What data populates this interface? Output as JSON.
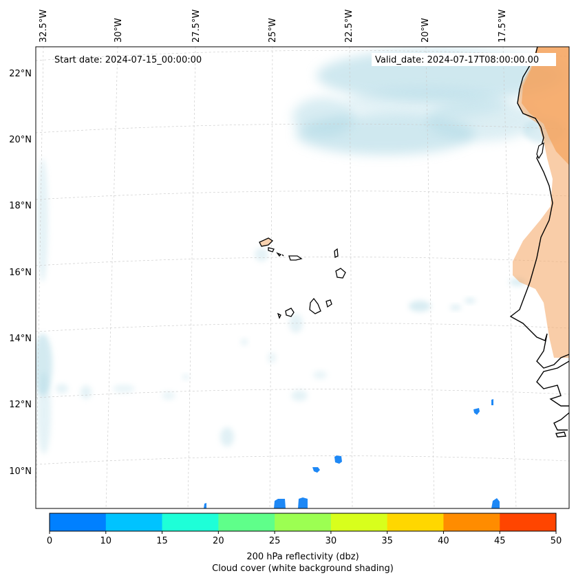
{
  "map": {
    "start_date_label": "Start date: 2024-07-15_00:00:00",
    "valid_date_label": "Valid_date: 2024-07-17T08:00:00.00",
    "lon_ticks": [
      "32.5°W",
      "30°W",
      "27.5°W",
      "25°W",
      "22.5°W",
      "20°W",
      "17.5°W"
    ],
    "lat_ticks": [
      "22°N",
      "20°N",
      "18°N",
      "16°N",
      "14°N",
      "12°N",
      "10°N"
    ],
    "colors": {
      "cloud": "#a9d6e3",
      "land_fill": "#f4a460",
      "coast": "#000000",
      "echo": "#1e88f5"
    }
  },
  "colorbar": {
    "ticks": [
      "0",
      "10",
      "15",
      "20",
      "25",
      "30",
      "35",
      "40",
      "45",
      "50"
    ],
    "colors": [
      "#0080ff",
      "#00c3ff",
      "#1effd8",
      "#5fff8a",
      "#9cff52",
      "#d8ff1c",
      "#ffd700",
      "#ff8c00",
      "#ff4500"
    ],
    "label_line1": "200 hPa reflectivity (dbz)",
    "label_line2": "Cloud cover (white background shading)"
  }
}
